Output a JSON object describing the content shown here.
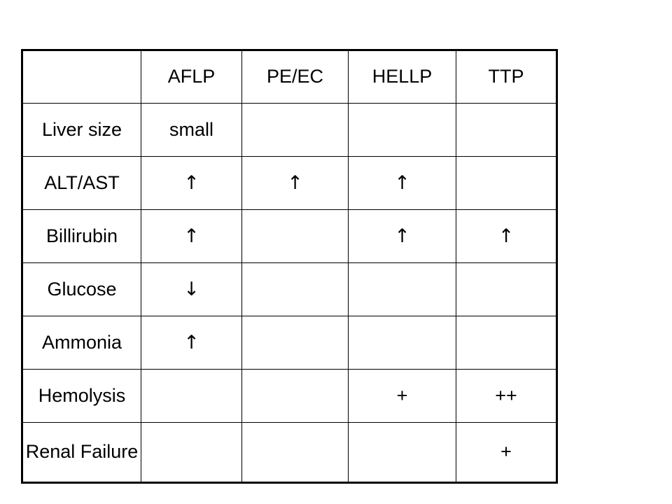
{
  "table": {
    "headers": [
      "",
      "AFLP",
      "PE/EC",
      "HELLP",
      "TTP"
    ],
    "rows": [
      {
        "label": "Liver size",
        "cells": [
          "small",
          "",
          "",
          ""
        ]
      },
      {
        "label": "ALT/AST",
        "cells": [
          "↑",
          "↑",
          "↑",
          ""
        ]
      },
      {
        "label": "Billirubin",
        "cells": [
          "↑",
          "",
          "↑",
          "↑"
        ]
      },
      {
        "label": "Glucose",
        "cells": [
          "↓",
          "",
          "",
          ""
        ]
      },
      {
        "label": "Ammonia",
        "cells": [
          "↑",
          "",
          "",
          ""
        ]
      },
      {
        "label": "Hemolysis",
        "cells": [
          "",
          "",
          "+",
          "++"
        ]
      },
      {
        "label": "Renal Failure",
        "cells": [
          "",
          "",
          "",
          "+"
        ]
      }
    ]
  }
}
